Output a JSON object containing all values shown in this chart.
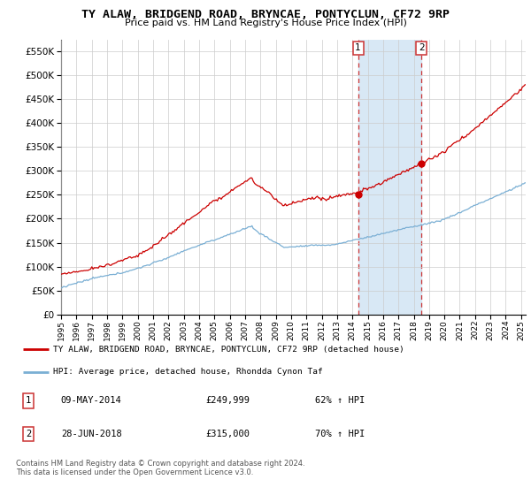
{
  "title": "TY ALAW, BRIDGEND ROAD, BRYNCAE, PONTYCLUN, CF72 9RP",
  "subtitle": "Price paid vs. HM Land Registry's House Price Index (HPI)",
  "red_label": "TY ALAW, BRIDGEND ROAD, BRYNCAE, PONTYCLUN, CF72 9RP (detached house)",
  "blue_label": "HPI: Average price, detached house, Rhondda Cynon Taf",
  "footnote": "Contains HM Land Registry data © Crown copyright and database right 2024.\nThis data is licensed under the Open Government Licence v3.0.",
  "marker1_date": "09-MAY-2014",
  "marker1_price": "£249,999",
  "marker1_hpi": "62% ↑ HPI",
  "marker2_date": "28-JUN-2018",
  "marker2_price": "£315,000",
  "marker2_hpi": "70% ↑ HPI",
  "ylim": [
    0,
    575000
  ],
  "yticks": [
    0,
    50000,
    100000,
    150000,
    200000,
    250000,
    300000,
    350000,
    400000,
    450000,
    500000,
    550000
  ],
  "shade_color": "#d8e8f5",
  "red_color": "#cc0000",
  "blue_color": "#7aafd4",
  "grid_color": "#cccccc",
  "marker1_x": 2014.37,
  "marker2_x": 2018.5,
  "red_y1": 249999,
  "red_y2": 315000,
  "xlim_left": 1995,
  "xlim_right": 2025.3
}
